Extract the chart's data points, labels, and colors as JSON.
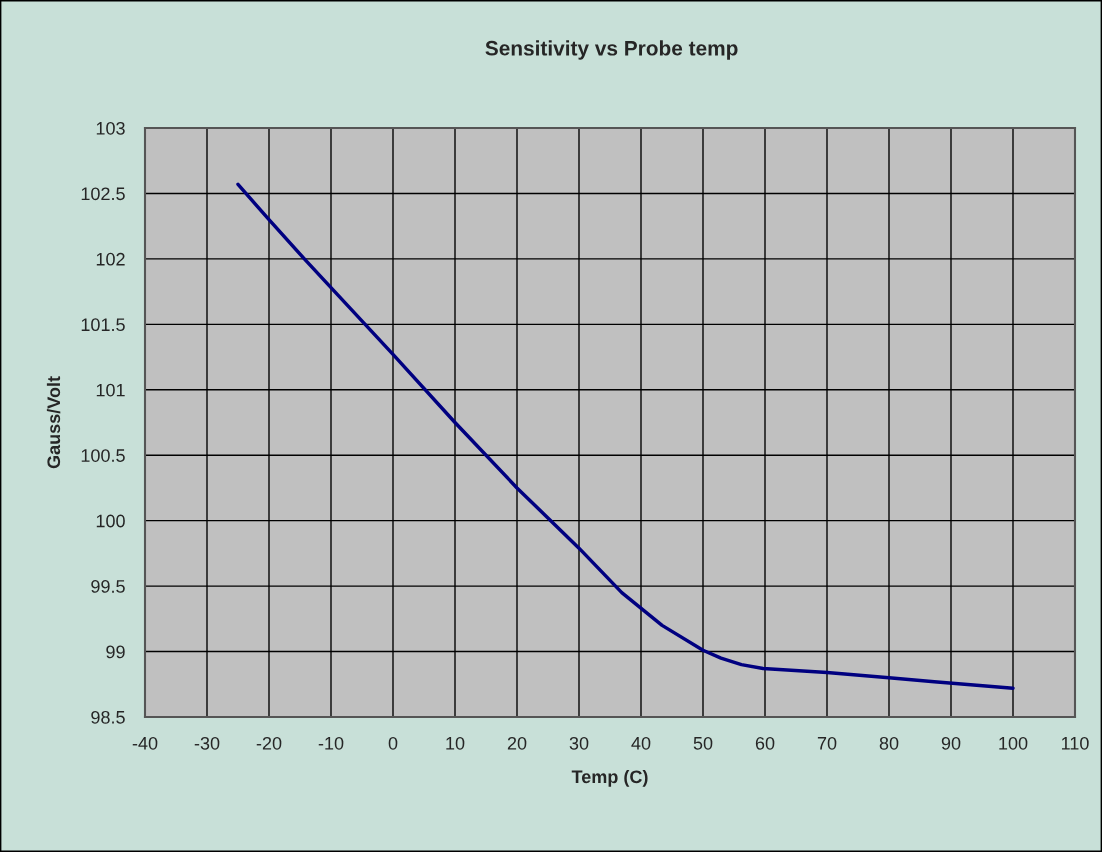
{
  "chart_data": {
    "type": "line",
    "title": "Sensitivity vs Probe temp",
    "xlabel": "Temp (C)",
    "ylabel": "Gauss/Volt",
    "series": [
      {
        "color": "#000080",
        "x": [
          -25,
          -20,
          -14.3,
          -10,
          0,
          10,
          20,
          30,
          36.9,
          43.4,
          50,
          52.9,
          56.2,
          59.7,
          70,
          80,
          87.3,
          100
        ],
        "values": [
          102.57,
          102.3,
          102.0,
          101.78,
          101.27,
          100.75,
          100.25,
          99.79,
          99.45,
          99.2,
          99.01,
          98.95,
          98.9,
          98.87,
          98.84,
          98.8,
          98.77,
          98.72
        ]
      }
    ],
    "xlim": [
      -40,
      110
    ],
    "xticks": [
      -40,
      -30,
      -20,
      -10,
      0,
      10,
      20,
      30,
      40,
      50,
      60,
      70,
      80,
      90,
      100,
      110
    ],
    "ylim": [
      98.5,
      103
    ],
    "yticks": [
      98.5,
      99,
      99.5,
      100,
      100.5,
      101,
      101.5,
      102,
      102.5,
      103
    ],
    "grid": true,
    "marker": "none",
    "line_style": "solid"
  }
}
